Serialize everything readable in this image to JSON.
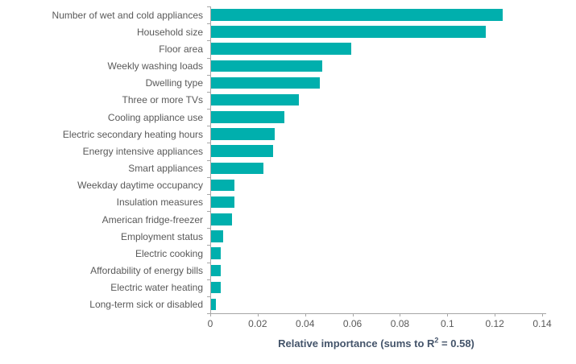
{
  "chart_data": {
    "type": "bar",
    "orientation": "horizontal",
    "title": "",
    "xlabel": "Relative importance (sums to R² = 0.58)",
    "xlabel_parts": {
      "prefix": "Relative importance (sums to R",
      "sup": "2",
      "suffix": " = 0.58)"
    },
    "ylabel": "",
    "categories": [
      "Number of wet and cold appliances",
      "Household size",
      "Floor area",
      "Weekly washing loads",
      "Dwelling type",
      "Three or more TVs",
      "Cooling appliance use",
      "Electric secondary heating hours",
      "Energy intensive appliances",
      "Smart appliances",
      "Weekday daytime occupancy",
      "Insulation measures",
      "American fridge-freezer",
      "Employment status",
      "Electric cooking",
      "Affordability of energy bills",
      "Electric water heating",
      "Long-term sick or disabled"
    ],
    "values": [
      0.123,
      0.116,
      0.059,
      0.047,
      0.046,
      0.037,
      0.031,
      0.027,
      0.026,
      0.022,
      0.01,
      0.01,
      0.009,
      0.005,
      0.004,
      0.004,
      0.004,
      0.002
    ],
    "xlim": [
      0,
      0.14
    ],
    "xticks": [
      0,
      0.02,
      0.04,
      0.06,
      0.08,
      0.1,
      0.12,
      0.14
    ],
    "xtick_labels": [
      "0",
      "0.02",
      "0.04",
      "0.06",
      "0.08",
      "0.1",
      "0.12",
      "0.14"
    ],
    "grid": false,
    "legend_position": "none",
    "colors": {
      "bar": "#00afad",
      "axis": "#a6a6a6",
      "tick_label": "#595959",
      "category_label": "#595959",
      "axis_title": "#44546a"
    }
  }
}
